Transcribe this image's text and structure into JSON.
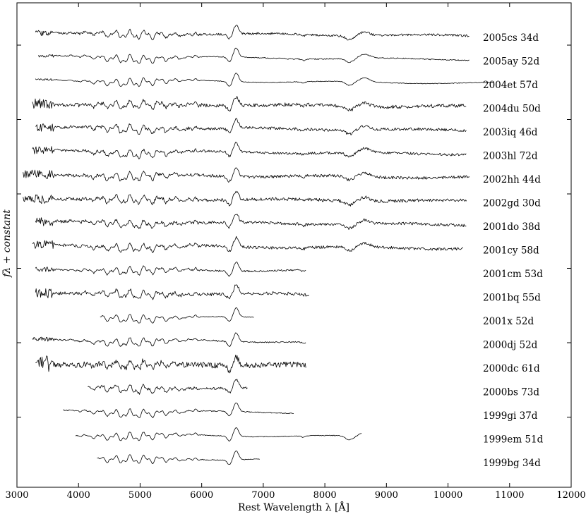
{
  "chart_data": {
    "type": "line",
    "xlabel": "Rest Wavelength λ [Å]",
    "ylabel": "fλ + constant",
    "xlim": [
      3000,
      12000
    ],
    "x_ticks": [
      3000,
      4000,
      5000,
      6000,
      7000,
      8000,
      9000,
      10000,
      11000,
      12000
    ],
    "y_ticks_visible": 6,
    "y_tick_labels": false,
    "grid": false,
    "legend": "none",
    "series_style": "stacked spectra, vertically offset, each labeled at right",
    "series": [
      {
        "name": "2005cs 34d",
        "x_range": [
          3300,
          10350
        ],
        "noise": 0.6
      },
      {
        "name": "2005ay 52d",
        "x_range": [
          3350,
          10350
        ],
        "noise": 0.3
      },
      {
        "name": "2004et 57d",
        "x_range": [
          3300,
          10750
        ],
        "noise": 0.2
      },
      {
        "name": "2004du 50d",
        "x_range": [
          3250,
          10300
        ],
        "noise": 1.0
      },
      {
        "name": "2003iq 46d",
        "x_range": [
          3300,
          10300
        ],
        "noise": 0.8
      },
      {
        "name": "2003hl 72d",
        "x_range": [
          3250,
          10300
        ],
        "noise": 0.7
      },
      {
        "name": "2002hh 44d",
        "x_range": [
          3100,
          10350
        ],
        "noise": 0.8
      },
      {
        "name": "2002gd 30d",
        "x_range": [
          3100,
          10300
        ],
        "noise": 0.9
      },
      {
        "name": "2001do 38d",
        "x_range": [
          3300,
          10300
        ],
        "noise": 0.8
      },
      {
        "name": "2001cy 58d",
        "x_range": [
          3250,
          10250
        ],
        "noise": 0.8
      },
      {
        "name": "2001cm 53d",
        "x_range": [
          3300,
          7700
        ],
        "noise": 0.5
      },
      {
        "name": "2001bq 55d",
        "x_range": [
          3300,
          7750
        ],
        "noise": 0.9
      },
      {
        "name": "2001x 52d",
        "x_range": [
          4350,
          6850
        ],
        "noise": 0.2
      },
      {
        "name": "2000dj 52d",
        "x_range": [
          3250,
          7700
        ],
        "noise": 0.4
      },
      {
        "name": "2000dc 61d",
        "x_range": [
          3300,
          7700
        ],
        "noise": 1.6
      },
      {
        "name": "2000bs 73d",
        "x_range": [
          4150,
          6750
        ],
        "noise": 0.7
      },
      {
        "name": "1999gi 37d",
        "x_range": [
          3750,
          7500
        ],
        "noise": 0.3
      },
      {
        "name": "1999em 51d",
        "x_range": [
          3950,
          8600
        ],
        "noise": 0.2
      },
      {
        "name": "1999bg 34d",
        "x_range": [
          4300,
          6950
        ],
        "noise": 0.2
      }
    ]
  }
}
